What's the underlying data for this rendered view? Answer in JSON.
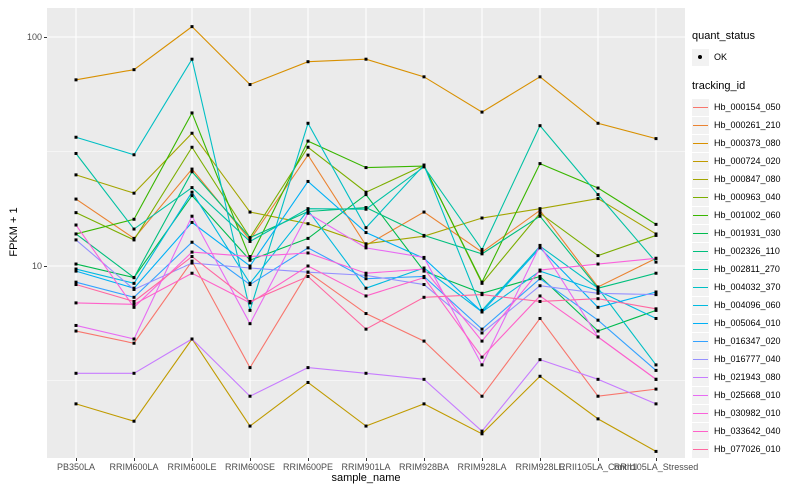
{
  "legend": {
    "quant_status_title": "quant_status",
    "quant_status_value": "OK",
    "tracking_title": "tracking_id"
  },
  "colors": {
    "panel_background": "#EBEBEB",
    "grid": "#FFFFFF",
    "tick_text": "#4d4d4d",
    "point": "#000000",
    "legend_key_background": "#F2F2F2"
  },
  "chart_data": {
    "type": "line",
    "title": "",
    "xlabel": "sample_name",
    "ylabel": "FPKM + 1",
    "y_scale": "log10",
    "ylim": [
      1.45,
      134
    ],
    "y_ticks": [
      {
        "label": "100",
        "value": 100
      },
      {
        "label": "10",
        "value": 10
      }
    ],
    "y_minor_gridlines": [
      31.623,
      3.1623
    ],
    "grid": true,
    "legend_position": "right",
    "point_shape": "filled-square",
    "categories": [
      "PB350LA",
      "RRIM600LA",
      "RRIM600LE",
      "RRIM600SE",
      "RRIM600PE",
      "RRIM901LA",
      "RRIM928BA",
      "RRIM928LA",
      "RRIM928LE",
      "RRII105LA_Control",
      "RRII105LA_Stressed"
    ],
    "series": [
      {
        "name": "Hb_000154_050",
        "color": "#F8766D",
        "values": [
          5.2,
          4.6,
          10.5,
          3.6,
          9.4,
          6.2,
          4.7,
          2.7,
          5.9,
          2.7,
          2.9
        ]
      },
      {
        "name": "Hb_000261_210",
        "color": "#EA8331",
        "values": [
          19.6,
          13.2,
          26.5,
          13.0,
          30.5,
          12.3,
          17.2,
          11.5,
          17.5,
          8.1,
          10.8
        ]
      },
      {
        "name": "Hb_000373_080",
        "color": "#D89000",
        "values": [
          65,
          72,
          111,
          62,
          78,
          80,
          67,
          47,
          67,
          42,
          36
        ]
      },
      {
        "name": "Hb_000724_020",
        "color": "#C09B00",
        "values": [
          2.5,
          2.1,
          4.8,
          2.0,
          3.1,
          2.0,
          2.5,
          1.85,
          3.3,
          2.15,
          1.55
        ]
      },
      {
        "name": "Hb_000847_080",
        "color": "#A3A500",
        "values": [
          25,
          20.8,
          38,
          17.2,
          15.3,
          12.5,
          13.5,
          16.2,
          17.8,
          19.7,
          13.8
        ]
      },
      {
        "name": "Hb_000963_040",
        "color": "#7CAE00",
        "values": [
          17.1,
          13.0,
          33,
          13.3,
          33,
          21,
          27.5,
          8.4,
          17.0,
          11.1,
          13.6
        ]
      },
      {
        "name": "Hb_001002_060",
        "color": "#39B600",
        "values": [
          13.8,
          16.0,
          46.6,
          10.8,
          35.1,
          26.9,
          27.3,
          8.5,
          28,
          21.9,
          15.2
        ]
      },
      {
        "name": "Hb_001931_030",
        "color": "#00BB4E",
        "values": [
          10.2,
          8.9,
          20.3,
          10.6,
          13.2,
          20.5,
          9.5,
          7.6,
          9.0,
          5.2,
          6.4
        ]
      },
      {
        "name": "Hb_002326_110",
        "color": "#00BF7D",
        "values": [
          13.8,
          8.9,
          25.8,
          13.3,
          17.3,
          18.0,
          13.6,
          11.3,
          16.5,
          8.0,
          9.3
        ]
      },
      {
        "name": "Hb_002811_270",
        "color": "#00C1A3",
        "values": [
          31,
          14.5,
          22,
          12.8,
          17.8,
          17.7,
          27.1,
          11.8,
          41,
          20.5,
          10.4
        ]
      },
      {
        "name": "Hb_004032_370",
        "color": "#00BFC4",
        "values": [
          36.5,
          30.6,
          80,
          6.4,
          42,
          14.7,
          27.6,
          6.4,
          12.2,
          8.0,
          3.7
        ]
      },
      {
        "name": "Hb_004096_060",
        "color": "#00BAE0",
        "values": [
          9.7,
          8.4,
          21,
          8.4,
          17.5,
          8.0,
          9.8,
          6.3,
          9.5,
          7.8,
          5.9
        ]
      },
      {
        "name": "Hb_005064_010",
        "color": "#00B0F6",
        "values": [
          9.5,
          8.0,
          15.5,
          10.0,
          23.4,
          14.0,
          10.8,
          6.3,
          12.0,
          6.6,
          7.7
        ]
      },
      {
        "name": "Hb_016347_020",
        "color": "#35A2FF",
        "values": [
          8.5,
          7.3,
          12.7,
          8.3,
          12.0,
          8.8,
          9.0,
          5.3,
          8.8,
          5.8,
          3.5
        ]
      },
      {
        "name": "Hb_016777_040",
        "color": "#9590FF",
        "values": [
          13.0,
          7.9,
          10.3,
          9.8,
          9.4,
          9.1,
          8.3,
          5.1,
          8.2,
          7.6,
          7.5
        ]
      },
      {
        "name": "Hb_021943_080",
        "color": "#C77CFF",
        "values": [
          3.4,
          3.4,
          4.8,
          2.7,
          3.6,
          3.4,
          3.2,
          1.9,
          3.9,
          3.2,
          2.5
        ]
      },
      {
        "name": "Hb_025668_010",
        "color": "#E76BF3",
        "values": [
          5.5,
          4.8,
          16.5,
          5.6,
          17.0,
          12.0,
          10.9,
          3.7,
          12.3,
          4.9,
          3.2
        ]
      },
      {
        "name": "Hb_030982_010",
        "color": "#FA62DB",
        "values": [
          15.1,
          6.6,
          11.5,
          11.0,
          11.4,
          9.3,
          9.7,
          4.7,
          9.6,
          10.2,
          10.8
        ]
      },
      {
        "name": "Hb_033642_040",
        "color": "#FF61C9",
        "values": [
          6.9,
          6.8,
          9.3,
          6.9,
          10.0,
          7.4,
          8.9,
          4.0,
          7.4,
          4.9,
          3.2
        ]
      },
      {
        "name": "Hb_077026_010",
        "color": "#FF68A1",
        "values": [
          8.3,
          7.0,
          11.0,
          7.0,
          9.0,
          5.3,
          7.3,
          7.5,
          7.0,
          7.2,
          6.5
        ]
      }
    ]
  }
}
